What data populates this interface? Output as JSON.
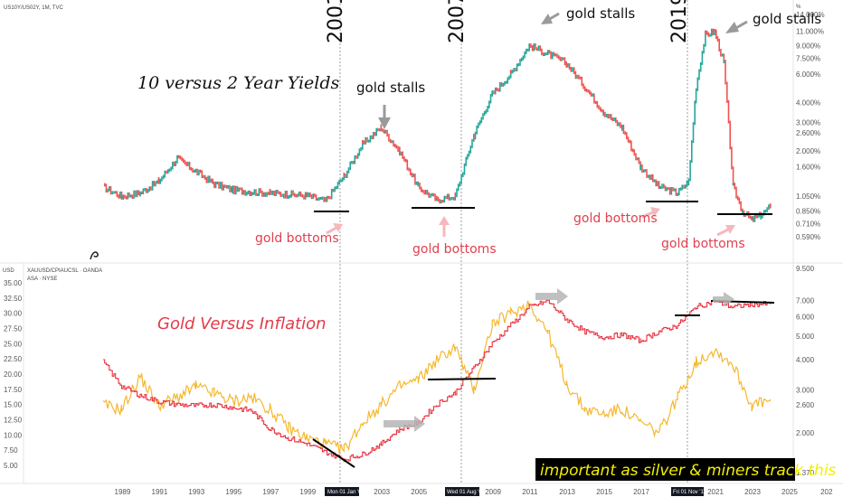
{
  "top_panel": {
    "symbol": "US10Y/US02Y, 1M, TVC",
    "title": "10 versus 2 Year Yields",
    "unit": "%",
    "y_ticks": [
      "14.000%",
      "11.000%",
      "9.000%",
      "7.500%",
      "6.000%",
      "4.000%",
      "3.000%",
      "2.600%",
      "2.000%",
      "1.600%",
      "1.050%",
      "0.850%",
      "0.710%",
      "0.590%"
    ],
    "year_labels": [
      "2001",
      "2007",
      "2019"
    ],
    "gold_stalls": [
      "gold stalls",
      "gold stalls",
      "gold stalls"
    ],
    "gold_bottoms": [
      "gold bottoms",
      "gold bottoms",
      "gold bottoms",
      "gold bottoms"
    ]
  },
  "bottom_panel": {
    "symbol": "XAUUSD/CPIAUCSL · OANDA",
    "symbol2": "ASA · NYSE",
    "unit": "USD",
    "title": "Gold Versus Inflation",
    "left_ticks": [
      "35.00",
      "32.50",
      "30.00",
      "27.50",
      "25.00",
      "22.50",
      "20.00",
      "17.50",
      "15.00",
      "12.50",
      "10.00",
      "7.50",
      "5.00"
    ],
    "right_ticks": [
      "9.500",
      "7.000",
      "6.000",
      "5.000",
      "4.000",
      "3.000",
      "2.600",
      "2.000",
      "1.370"
    ],
    "banner": "important as silver & miners track this"
  },
  "x_axis": {
    "labels": [
      "1989",
      "1991",
      "1993",
      "1995",
      "1997",
      "1999",
      "2003",
      "2005",
      "2009",
      "2011",
      "2013",
      "2015",
      "2017",
      "2021",
      "2023",
      "2025",
      "202"
    ],
    "date_boxes": [
      "Mon 01 Jan '01",
      "Wed 01 Aug '07",
      "Fri 01 Nov '19"
    ]
  },
  "chart_data": [
    {
      "type": "line",
      "title": "10 versus 2 Year Yields",
      "series": [
        {
          "name": "US10Y/US02Y",
          "x": [
            1988,
            1989,
            1990,
            1991,
            1992,
            1993,
            1994,
            1995,
            1996,
            1997,
            1998,
            1999,
            2000,
            2001,
            2002,
            2003,
            2004,
            2005,
            2006,
            2007,
            2008,
            2009,
            2010,
            2011,
            2012,
            2013,
            2014,
            2015,
            2016,
            2017,
            2018,
            2019,
            2019.6,
            2020,
            2020.5,
            2021,
            2021.5,
            2022,
            2022.5,
            2023,
            2023.5,
            2024
          ],
          "y": [
            1.2,
            1.05,
            1.1,
            1.3,
            1.8,
            1.5,
            1.25,
            1.15,
            1.12,
            1.1,
            1.08,
            1.06,
            0.98,
            1.4,
            2.2,
            2.8,
            2.0,
            1.2,
            1.0,
            1.05,
            2.5,
            4.5,
            6.0,
            9.0,
            8.0,
            7.0,
            5.0,
            3.5,
            2.8,
            1.6,
            1.2,
            1.1,
            1.3,
            5.0,
            10.5,
            11.0,
            7.0,
            1.2,
            0.85,
            0.75,
            0.8,
            0.9
          ]
        }
      ]
    },
    {
      "type": "line",
      "title": "Gold Versus Inflation",
      "series": [
        {
          "name": "XAUUSD/CPIAUCSL",
          "x": [
            1988,
            1989,
            1990,
            1991,
            1992,
            1993,
            1994,
            1995,
            1996,
            1997,
            1998,
            1999,
            2000,
            2001,
            2002,
            2003,
            2004,
            2005,
            2006,
            2007,
            2008,
            2009,
            2010,
            2011,
            2012,
            2013,
            2014,
            2015,
            2016,
            2017,
            2018,
            2019,
            2020,
            2021,
            2022,
            2023,
            2024
          ],
          "y": [
            22,
            18,
            16.5,
            15.5,
            15,
            14.8,
            15,
            14.5,
            14,
            11,
            9.5,
            8.5,
            7.2,
            6,
            6.8,
            8.5,
            11,
            12,
            15,
            17,
            21,
            25,
            28,
            31,
            32,
            29,
            27,
            26,
            26.5,
            25.5,
            27,
            28,
            31,
            32,
            31,
            31.5,
            31.5
          ]
        },
        {
          "name": "ASA · NYSE",
          "x": [
            1988,
            1989,
            1990,
            1991,
            1992,
            1993,
            1994,
            1995,
            1996,
            1997,
            1998,
            1999,
            2000,
            2001,
            2002,
            2003,
            2004,
            2005,
            2006,
            2007,
            2008,
            2009,
            2010,
            2011,
            2012,
            2013,
            2014,
            2015,
            2016,
            2017,
            2018,
            2019,
            2020,
            2021,
            2022,
            2023,
            2024
          ],
          "y": [
            2.6,
            2.5,
            3.4,
            2.6,
            2.8,
            3.1,
            2.9,
            2.7,
            2.8,
            2.5,
            2.1,
            1.9,
            1.8,
            1.7,
            2.2,
            2.6,
            3.1,
            3.3,
            4.0,
            4.5,
            3.0,
            5.6,
            6.2,
            6.8,
            5.2,
            3.2,
            2.5,
            2.4,
            2.5,
            2.2,
            2.0,
            2.8,
            3.9,
            4.4,
            3.8,
            2.6,
            2.7
          ]
        }
      ]
    }
  ]
}
